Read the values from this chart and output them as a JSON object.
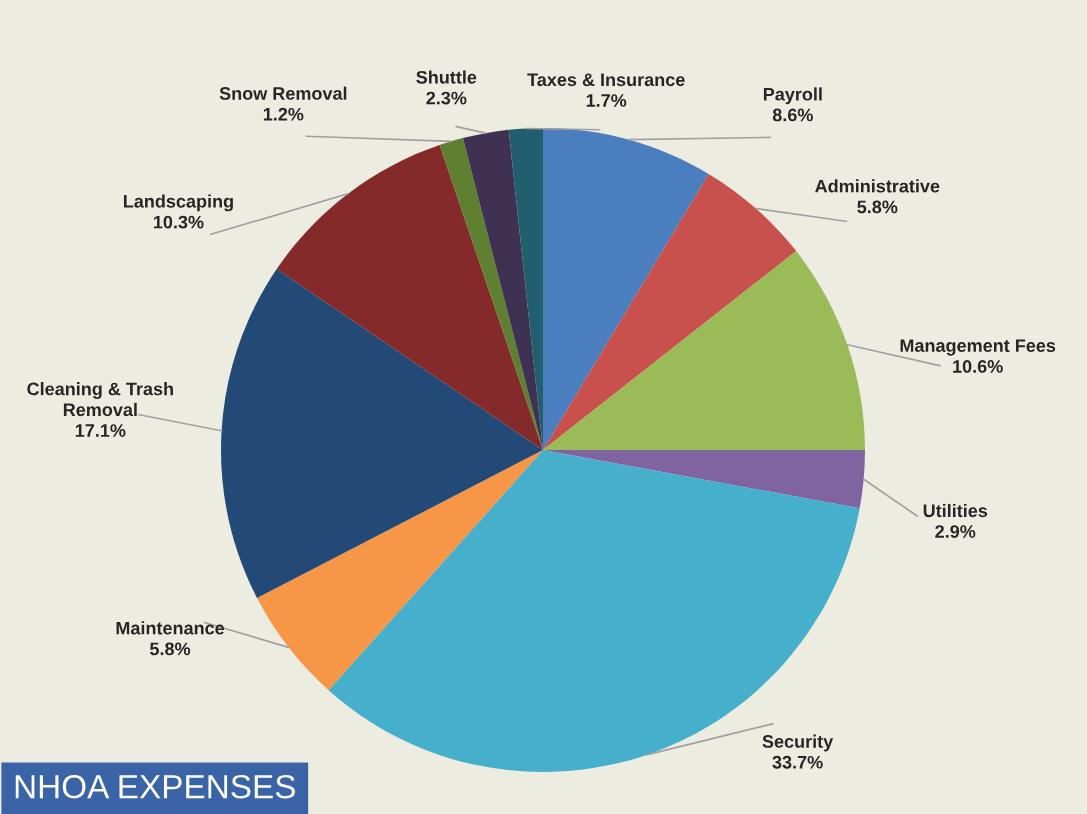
{
  "chart_data": {
    "type": "pie",
    "title": "NHOA EXPENSES",
    "categories": [
      "Payroll",
      "Administrative",
      "Management Fees",
      "Utilities",
      "Security",
      "Maintenance",
      "Cleaning & Trash\nRemoval",
      "Landscaping",
      "Snow Removal",
      "Shuttle",
      "Taxes & Insurance"
    ],
    "values": [
      8.6,
      5.8,
      10.6,
      2.9,
      33.7,
      5.8,
      17.1,
      10.3,
      1.2,
      2.3,
      1.7
    ],
    "value_labels": [
      "8.6%",
      "5.8%",
      "10.6%",
      "2.9%",
      "33.7%",
      "5.8%",
      "17.1%",
      "10.3%",
      "1.2%",
      "2.3%",
      "1.7%"
    ],
    "colors": [
      "#4a7ebf",
      "#c8504d",
      "#9bbb59",
      "#8064a2",
      "#46afcc",
      "#f79646",
      "#234a76",
      "#842a2a",
      "#5f8030",
      "#3f3151",
      "#215e6e"
    ],
    "legend": false
  }
}
